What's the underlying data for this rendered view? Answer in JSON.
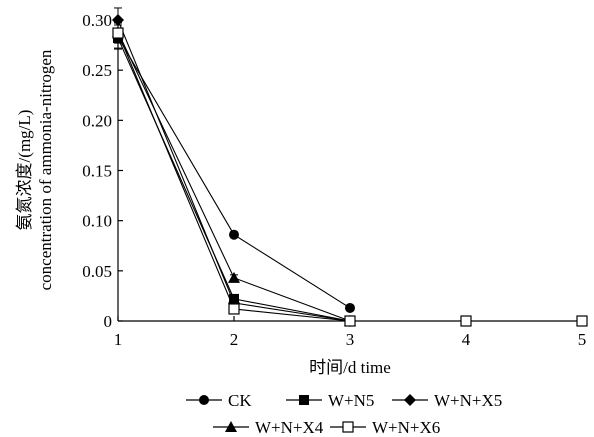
{
  "chart_data": {
    "type": "line",
    "xlabel": "时间/d time",
    "ylabel_line1": "氨氮浓度/(mg/L)",
    "ylabel_line2": "concentration of ammonia-nitrogen",
    "x": [
      1,
      2,
      3,
      4,
      5
    ],
    "x_tick_labels": [
      "1",
      "2",
      "3",
      "4",
      "5"
    ],
    "xlim": [
      1,
      5
    ],
    "ylim": [
      0,
      0.3
    ],
    "y_ticks": [
      0,
      0.05,
      0.1,
      0.15,
      0.2,
      0.25,
      0.3
    ],
    "y_tick_labels": [
      "0",
      "0.05",
      "0.10",
      "0.15",
      "0.20",
      "0.25",
      "0.30"
    ],
    "grid": false,
    "legend_position": "bottom",
    "series": [
      {
        "name": "CK",
        "marker": "filled-circle",
        "values": [
          0.283,
          0.086,
          0.013,
          null,
          null
        ],
        "error": [
          0.012,
          0,
          0,
          null,
          null
        ]
      },
      {
        "name": "W+N5",
        "marker": "filled-square",
        "values": [
          0.282,
          0.022,
          0,
          null,
          null
        ],
        "error": [
          0.01,
          0,
          0,
          null,
          null
        ]
      },
      {
        "name": "W+N+X5",
        "marker": "filled-diamond",
        "values": [
          0.3,
          0.018,
          0,
          null,
          null
        ],
        "error": [
          0.012,
          0,
          0,
          null,
          null
        ]
      },
      {
        "name": "W+N+X4",
        "marker": "filled-triangle",
        "values": [
          0.288,
          0.043,
          0,
          null,
          null
        ],
        "error": [
          0.01,
          0.003,
          0,
          null,
          null
        ]
      },
      {
        "name": "W+N+X6",
        "marker": "open-square",
        "values": [
          0.287,
          0.012,
          0,
          0,
          0
        ],
        "error": [
          0.01,
          0,
          0,
          0,
          0
        ]
      }
    ],
    "colors": {
      "line": "#000000",
      "open_fill": "#ffffff"
    }
  }
}
